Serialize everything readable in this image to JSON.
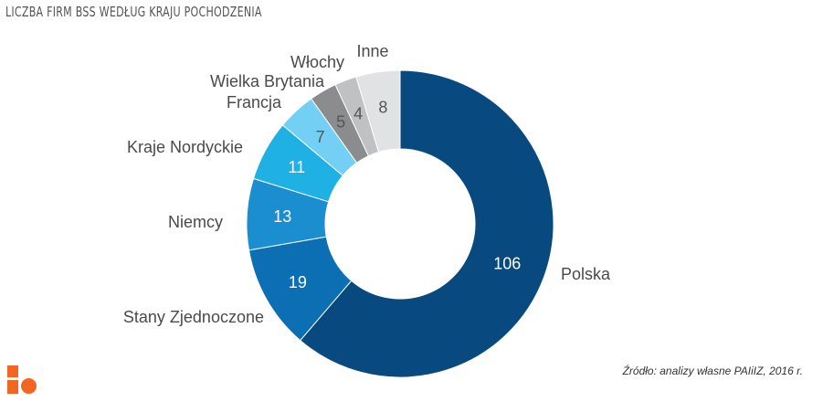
{
  "header": {
    "title": "Liczba firm BSS według kraju pochodzenia"
  },
  "source_note": "Źródło: analizy własne PAIiIZ, 2016 r.",
  "colors": {
    "logo": "#f26522"
  },
  "chart_data": {
    "type": "pie",
    "donut": true,
    "title": "Liczba firm BSS według kraju pochodzenia",
    "categories": [
      "Polska",
      "Stany Zjednoczone",
      "Niemcy",
      "Kraje Nordyckie",
      "Francja",
      "Wielka Brytania",
      "Włochy",
      "Inne"
    ],
    "values": [
      106,
      19,
      13,
      11,
      7,
      5,
      4,
      8
    ],
    "colors": [
      "#084a80",
      "#0c6fb4",
      "#1a8ecf",
      "#1fb1e3",
      "#73d0f4",
      "#8a8c8e",
      "#c0c1c3",
      "#e1e2e3"
    ],
    "value_text_colors": [
      "#ffffff",
      "#ffffff",
      "#ffffff",
      "#ffffff",
      "#555555",
      "#555555",
      "#555555",
      "#555555"
    ]
  }
}
